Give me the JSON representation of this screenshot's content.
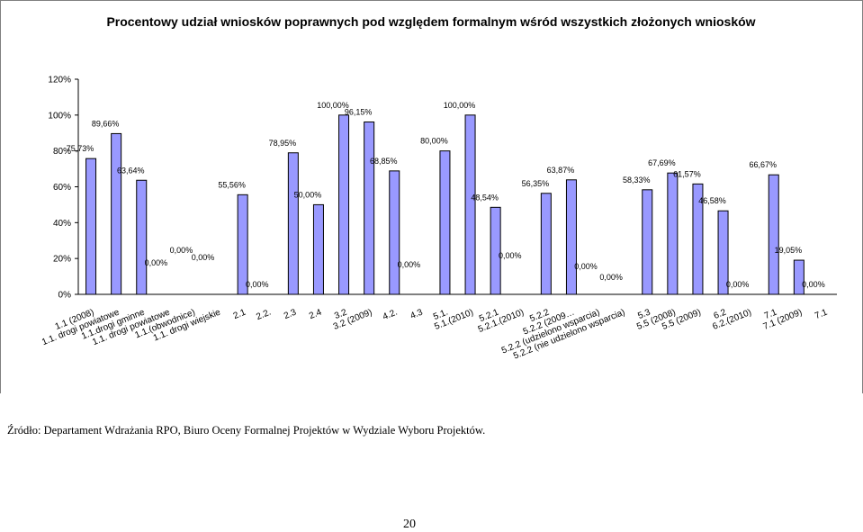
{
  "chart_data": {
    "type": "bar",
    "title": "Procentowy udział wniosków poprawnych pod względem formalnym wśród wszystkich złożonych wniosków",
    "ylim": [
      0,
      120
    ],
    "yticks": [
      "0%",
      "20%",
      "40%",
      "60%",
      "80%",
      "100%",
      "120%"
    ],
    "bar_color": "#9999ff",
    "categories": [
      "1.1 (2008)",
      "1.1. drogi powiatowe",
      "1.1.drogi gminne",
      "1.1. drogi powiatowe",
      "1.1.(obwodnice)",
      "1.1. drogi wiejskie",
      "2.1",
      "2.2.",
      "2.3",
      "2.4",
      "3.2",
      "3.2 (2009)",
      "4.2.",
      "4.3",
      "5.1.",
      "5.1.(2010)",
      "5.2.1",
      "5.2.1.(2010)",
      "5.2.2",
      "5.2.2 (2009…",
      "5.2.2 (udzielono wsparcia)",
      "5.2.2 (nie udzielono wsparcia)",
      "5.3",
      "5.5 (2008)",
      "5.5 (2009)",
      "6.2",
      "6.2.(2010)",
      "7.1",
      "7.1 (2009)",
      "7.1"
    ],
    "values": [
      75.73,
      89.66,
      63.64,
      0,
      0,
      0,
      55.56,
      0,
      78.95,
      50,
      100,
      96.15,
      68.85,
      0,
      80,
      100,
      48.54,
      0,
      56.35,
      63.87,
      0,
      0,
      58.33,
      67.69,
      61.57,
      46.58,
      0,
      66.67,
      19.05,
      0
    ],
    "labels": [
      "75,73%",
      "89,66%",
      "63,64%",
      "0,00%",
      "0,00%",
      "0,00%",
      "55,56%",
      "0,00%",
      "78,95%",
      "50,00%",
      "100,00%",
      "96,15%",
      "68,85%",
      "0,00%",
      "80,00%",
      "100,00%",
      "48,54%",
      "0,00%",
      "56,35%",
      "63,87%",
      "0,00%",
      "0,00%",
      "58,33%",
      "67,69%",
      "61,57%",
      "46,58%",
      "0,00%",
      "66,67%",
      "19,05%",
      "0,00%"
    ]
  },
  "source_note": "Źródło: Departament Wdrażania RPO, Biuro Oceny Formalnej Projektów w Wydziale Wyboru Projektów.",
  "page_number": "20"
}
